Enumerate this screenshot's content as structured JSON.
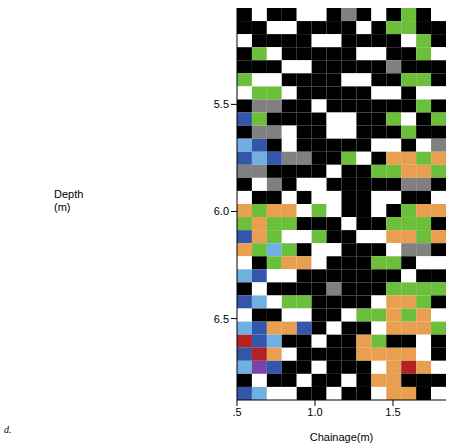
{
  "chart_data": {
    "type": "heatmap",
    "x_label": "Chainage(m)",
    "y_label": "Depth\n(m)",
    "caption": "d.",
    "xlim": [
      0.5,
      1.84
    ],
    "xticks": [
      {
        "value": 0.5,
        "label": ".5"
      },
      {
        "value": 1.0,
        "label": "1.0"
      },
      {
        "value": 1.5,
        "label": "1.5"
      }
    ],
    "ylim": [
      5.05,
      6.88
    ],
    "yticks": [
      5.5,
      {
        "value": 6.0,
        "label": "6.0"
      },
      6.5
    ],
    "palette": [
      "#000000",
      "#ffffff",
      "#808080",
      "#6cbf3a",
      "#e8a050",
      "#3355aa",
      "#6fb0e0",
      "#b22222",
      "#7744aa"
    ],
    "cells": [
      [
        0,
        1,
        0,
        0,
        1,
        1,
        0,
        2,
        0,
        1,
        0,
        3,
        0,
        1
      ],
      [
        0,
        0,
        1,
        1,
        0,
        0,
        0,
        0,
        1,
        0,
        3,
        3,
        0,
        0
      ],
      [
        1,
        0,
        0,
        0,
        0,
        1,
        1,
        0,
        0,
        0,
        0,
        1,
        3,
        0
      ],
      [
        0,
        3,
        1,
        0,
        0,
        0,
        0,
        0,
        1,
        1,
        0,
        0,
        3,
        1
      ],
      [
        0,
        0,
        0,
        1,
        1,
        0,
        0,
        0,
        0,
        0,
        2,
        0,
        0,
        0
      ],
      [
        3,
        1,
        1,
        0,
        0,
        0,
        0,
        1,
        1,
        0,
        0,
        3,
        3,
        0
      ],
      [
        1,
        3,
        3,
        1,
        0,
        0,
        0,
        0,
        0,
        1,
        1,
        0,
        1,
        1
      ],
      [
        0,
        2,
        2,
        0,
        0,
        1,
        0,
        0,
        0,
        0,
        0,
        0,
        3,
        0
      ],
      [
        5,
        3,
        0,
        0,
        0,
        0,
        1,
        1,
        0,
        0,
        3,
        1,
        0,
        3
      ],
      [
        0,
        2,
        2,
        1,
        0,
        0,
        1,
        1,
        0,
        0,
        0,
        3,
        0,
        0
      ],
      [
        6,
        5,
        0,
        1,
        0,
        0,
        0,
        0,
        0,
        1,
        1,
        0,
        1,
        2
      ],
      [
        5,
        6,
        5,
        2,
        2,
        0,
        0,
        3,
        1,
        0,
        4,
        4,
        3,
        4
      ],
      [
        2,
        2,
        0,
        0,
        0,
        0,
        1,
        0,
        0,
        3,
        3,
        4,
        4,
        3
      ],
      [
        0,
        1,
        2,
        0,
        1,
        1,
        0,
        0,
        0,
        0,
        0,
        2,
        2,
        0
      ],
      [
        1,
        0,
        0,
        1,
        0,
        1,
        1,
        0,
        0,
        1,
        1,
        0,
        0,
        1
      ],
      [
        4,
        3,
        4,
        4,
        1,
        3,
        1,
        0,
        0,
        1,
        0,
        3,
        4,
        4
      ],
      [
        3,
        4,
        3,
        3,
        0,
        0,
        0,
        1,
        0,
        0,
        3,
        3,
        3,
        0
      ],
      [
        5,
        4,
        3,
        1,
        1,
        3,
        0,
        0,
        1,
        1,
        4,
        4,
        3,
        4
      ],
      [
        4,
        3,
        6,
        3,
        0,
        1,
        1,
        0,
        0,
        0,
        1,
        2,
        2,
        0
      ],
      [
        1,
        0,
        3,
        4,
        4,
        1,
        0,
        0,
        0,
        3,
        3,
        0,
        1,
        1
      ],
      [
        6,
        5,
        1,
        1,
        0,
        0,
        0,
        0,
        0,
        0,
        0,
        1,
        0,
        0
      ],
      [
        0,
        1,
        0,
        0,
        0,
        0,
        2,
        0,
        0,
        0,
        3,
        3,
        3,
        3
      ],
      [
        5,
        6,
        1,
        3,
        3,
        0,
        0,
        0,
        0,
        1,
        4,
        4,
        3,
        0
      ],
      [
        1,
        0,
        0,
        1,
        1,
        0,
        0,
        1,
        3,
        3,
        4,
        3,
        4,
        1
      ],
      [
        6,
        5,
        4,
        4,
        5,
        0,
        1,
        0,
        0,
        1,
        4,
        4,
        4,
        3
      ],
      [
        7,
        5,
        6,
        0,
        0,
        1,
        0,
        0,
        4,
        3,
        0,
        0,
        1,
        0
      ],
      [
        5,
        7,
        4,
        1,
        0,
        0,
        0,
        0,
        4,
        4,
        4,
        4,
        1,
        0
      ],
      [
        6,
        8,
        5,
        0,
        0,
        1,
        0,
        0,
        0,
        1,
        4,
        7,
        4,
        1
      ],
      [
        0,
        1,
        0,
        0,
        1,
        0,
        0,
        1,
        0,
        4,
        4,
        0,
        0,
        0
      ],
      [
        5,
        6,
        1,
        1,
        0,
        0,
        1,
        0,
        0,
        1,
        4,
        4,
        0,
        1
      ]
    ]
  }
}
